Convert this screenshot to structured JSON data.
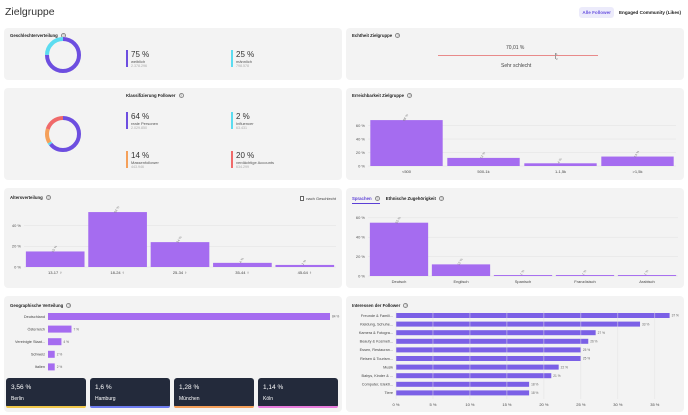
{
  "header": {
    "title": "Zielgruppe",
    "tabs": [
      "Alle Follower",
      "Engaged Community (Likes)"
    ]
  },
  "colors": {
    "purple": "#a56cf0",
    "dark_purple": "#6d4ee0",
    "cyan": "#5bdcf0",
    "green": "#42d39a",
    "orange": "#f5a05a",
    "red": "#f06a6a",
    "navy": "#232a3b",
    "yellow": "#f1c84a",
    "pink": "#e87cdc",
    "blue": "#6d7cf0"
  },
  "gender": {
    "title": "Geschlechterverteilung",
    "items": [
      {
        "pct": "75 %",
        "label": "weiblich",
        "count": "2.378.296",
        "color": "#6d4ee0"
      },
      {
        "pct": "25 %",
        "label": "männlich",
        "count": "798.578",
        "color": "#5bdcf0"
      }
    ]
  },
  "authenticity": {
    "title": "Echtheit Zielgruppe",
    "value": "70,01 %",
    "rating": "Sehr schlecht",
    "marker1": "1",
    "marker2": "2"
  },
  "classification": {
    "title": "Klassifizierung Follower",
    "items": [
      {
        "pct": "64 %",
        "label": "reale Personen",
        "count": "2.029.850",
        "color": "#6d4ee0"
      },
      {
        "pct": "2 %",
        "label": "Influencer",
        "count": "63.431",
        "color": "#5bdcf0"
      },
      {
        "pct": "14 %",
        "label": "Massenfollower",
        "count": "443.946",
        "color": "#f5a05a"
      },
      {
        "pct": "20 %",
        "label": "verdächtige Accounts",
        "count": "634.299",
        "color": "#f06a6a"
      }
    ]
  },
  "reach": {
    "title": "Erreichbarkeit Zielgruppe",
    "chart_data": {
      "type": "bar",
      "categories": [
        "<500",
        "500-1k",
        "1-1,5k",
        ">1,5k"
      ],
      "values": [
        68,
        12,
        4,
        14
      ],
      "value_labels": [
        "68 %",
        "12 %",
        "4 %",
        "14 %"
      ],
      "ylim": [
        0,
        80
      ],
      "yticks": [
        "0 %",
        "20 %",
        "40 %",
        "60 %"
      ]
    }
  },
  "age": {
    "title": "Altersverteilung",
    "checkbox": "nach Geschlecht",
    "chart_data": {
      "type": "bar",
      "categories": [
        "13-17 ♀",
        "18-24 ♀",
        "25-34 ♀",
        "35-44 ♀",
        "45-64 ♀"
      ],
      "values": [
        15,
        53,
        24,
        4,
        2
      ],
      "value_labels": [
        "15 %",
        "53 %",
        "24 %",
        "4 %",
        "2 %"
      ],
      "ylim": [
        0,
        55
      ],
      "yticks": [
        "0 %",
        "20 %",
        "40 %"
      ]
    }
  },
  "languages": {
    "tabs": [
      "Sprachen",
      "Ethnische Zugehörigkeit"
    ],
    "chart_data": {
      "type": "bar",
      "categories": [
        "Deutsch",
        "Englisch",
        "Spanisch",
        "Französisch",
        "Arabisch"
      ],
      "values": [
        55,
        12,
        1,
        1,
        1
      ],
      "value_labels": [
        "55 %",
        "12 %",
        "1 %",
        "1 %",
        "1 %"
      ],
      "ylim": [
        0,
        65
      ],
      "yticks": [
        "0 %",
        "20 %",
        "40 %",
        "60 %"
      ]
    }
  },
  "geo": {
    "title": "Geographische Verteilung",
    "chart_data": {
      "type": "bar",
      "orientation": "horizontal",
      "categories": [
        "Deutschland",
        "Österreich",
        "Vereinigte Staat...",
        "Schweiz",
        "Italien"
      ],
      "values": [
        84,
        7,
        4,
        2,
        2
      ],
      "value_labels": [
        "84 %",
        "7 %",
        "4 %",
        "2 %",
        "2 %"
      ]
    },
    "cities": [
      {
        "pct": "3,56 %",
        "name": "Berlin",
        "color": "#f1c84a"
      },
      {
        "pct": "1,6 %",
        "name": "Hamburg",
        "color": "#6d7cf0"
      },
      {
        "pct": "1,28 %",
        "name": "München",
        "color": "#f5a05a"
      },
      {
        "pct": "1,14 %",
        "name": "Köln",
        "color": "#e87cdc"
      }
    ]
  },
  "interests": {
    "title": "Interessen der Follower",
    "chart_data": {
      "type": "bar",
      "orientation": "horizontal",
      "categories": [
        "Freunde & Famili...",
        "Kleidung, Schuhe...",
        "Kamera & Fotogra...",
        "Beauty & Kosmeti...",
        "Essen, Restauran...",
        "Reisen & Tourism...",
        "Musik",
        "Babys, Kinder & ...",
        "Computer, Elektr...",
        "Tiere"
      ],
      "values": [
        37,
        33,
        27,
        26,
        25,
        25,
        22,
        21,
        18,
        18
      ],
      "value_labels": [
        "37 %",
        "33 %",
        "27 %",
        "26 %",
        "25 %",
        "25 %",
        "22 %",
        "21 %",
        "18 %",
        "18 %"
      ],
      "xlim": [
        0,
        37
      ],
      "xticks": [
        "0 %",
        "5 %",
        "10 %",
        "15 %",
        "20 %",
        "25 %",
        "30 %",
        "35 %"
      ]
    }
  }
}
